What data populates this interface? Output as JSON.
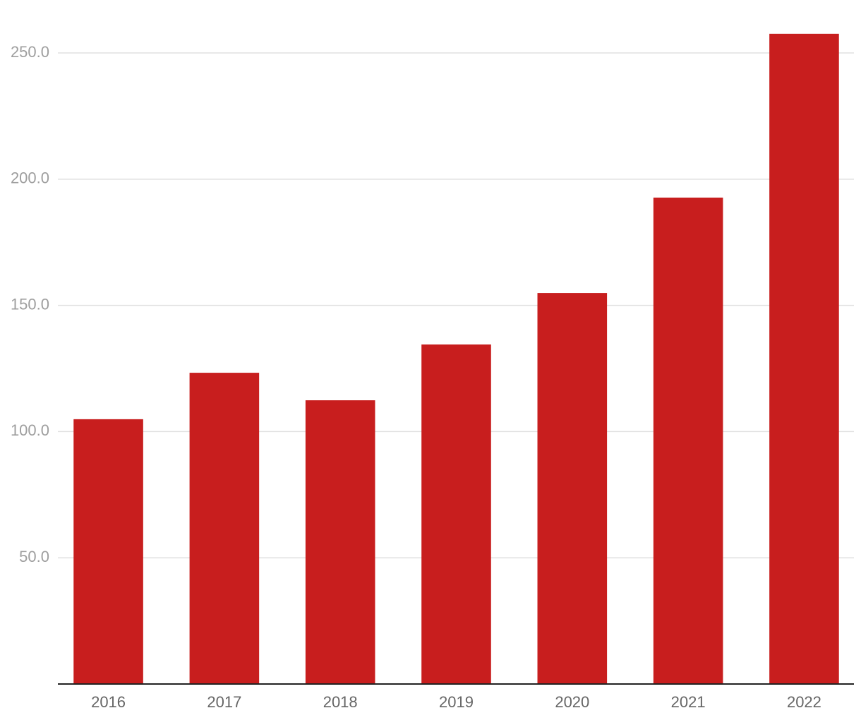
{
  "chart_data": {
    "type": "bar",
    "categories": [
      "2016",
      "2017",
      "2018",
      "2019",
      "2020",
      "2021",
      "2022"
    ],
    "values": [
      104.9,
      123.3,
      112.4,
      134.5,
      154.9,
      192.7,
      257.6
    ],
    "color": "#c81e1e",
    "ylim": [
      0,
      270
    ],
    "yticks": [
      {
        "value": 50,
        "label": "50.0"
      },
      {
        "value": 100,
        "label": "100.0"
      },
      {
        "value": 150,
        "label": "150.0"
      },
      {
        "value": 200,
        "label": "200.0"
      },
      {
        "value": 250,
        "label": "250.0"
      }
    ],
    "grid": true
  }
}
